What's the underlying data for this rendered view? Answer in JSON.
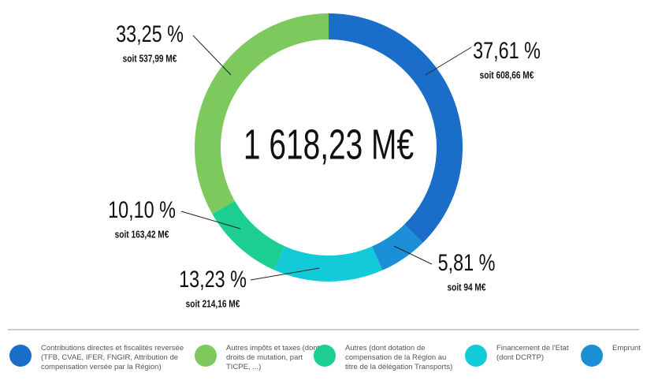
{
  "chart_data": {
    "type": "donut",
    "categories": [
      "Contributions directes et fiscalités reversée (TFB, CVAE, IFER, FNGIR, Attribution de compensation versée par la Région)",
      "Autres impôts et taxes (dont droits de mutation, part TICPE, ...)",
      "Autres (dont dotation de compensation de la Région au titre de la délégation Transports)",
      "Financement de l'Etat (dont DCRTP)",
      "Emprunt"
    ],
    "values": [
      37.61,
      33.25,
      10.1,
      13.23,
      5.81
    ],
    "value_labels": [
      "37,61 %",
      "33,25 %",
      "10,10 %",
      "13,23 %",
      "5,81 %"
    ],
    "amounts": [
      608.66,
      537.99,
      163.42,
      214.16,
      94
    ],
    "amount_labels": [
      "soit 608,66 M€",
      "soit 537,99 M€",
      "soit 163,42 M€",
      "soit 214,16 M€",
      "soit 94 M€"
    ],
    "colors": [
      "#1a6dc8",
      "#7dc95e",
      "#1ccf91",
      "#13cbd8",
      "#1a8fd8"
    ],
    "total": {
      "value": 1618.23,
      "label": "1 618,23 M€"
    }
  }
}
